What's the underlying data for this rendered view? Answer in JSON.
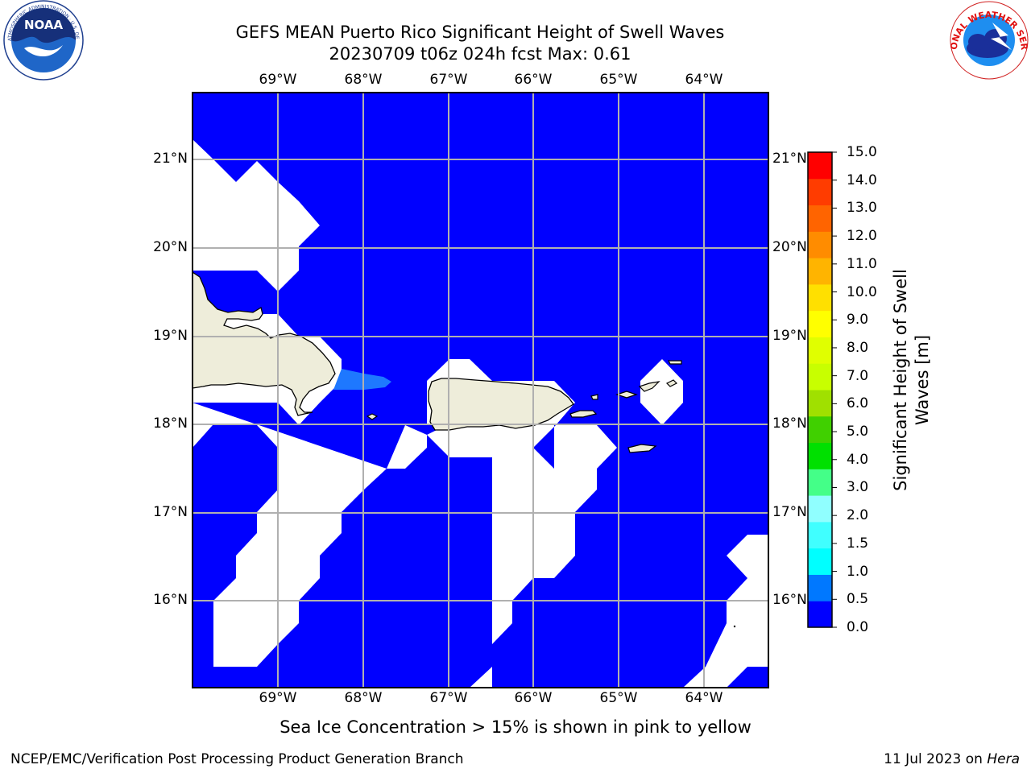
{
  "title_line1": "GEFS MEAN Puerto Rico Significant Height of Swell Waves",
  "title_line2": "20230709 t06z 024h fcst   Max: 0.61",
  "logo_left": {
    "icon": "noaa-logo-icon",
    "text": "NOAA",
    "ring_text": "NATIONAL OCEANIC AND ATMOSPHERIC ADMINISTRATION · U.S. DEPARTMENT OF COMMERCE"
  },
  "logo_right": {
    "icon": "national-weather-service-logo-icon",
    "ring_text": "NATIONAL WEATHER SERVICE"
  },
  "map": {
    "lon_labels": [
      "69°W",
      "68°W",
      "67°W",
      "66°W",
      "65°W",
      "64°W"
    ],
    "lat_labels": [
      "21°N",
      "20°N",
      "19°N",
      "18°N",
      "17°N",
      "16°N"
    ],
    "ocean_color": "#0000ff",
    "land_color": "#eeedda",
    "swell_highlight_color": "#1e78ff",
    "grid": true
  },
  "colorbar": {
    "label": "Significant Height of Swell Waves [m]",
    "ticks": [
      "15.0",
      "14.0",
      "13.0",
      "12.0",
      "11.0",
      "10.0",
      "9.0",
      "8.0",
      "7.0",
      "6.0",
      "5.0",
      "4.0",
      "3.0",
      "2.0",
      "1.5",
      "1.0",
      "0.5",
      "0.0"
    ],
    "colors_bottom_to_top": [
      "#0000ff",
      "#0078ff",
      "#00ffff",
      "#40ffff",
      "#90ffff",
      "#44ff88",
      "#00e000",
      "#40d000",
      "#a0e000",
      "#c8ff00",
      "#e0ff00",
      "#ffff00",
      "#ffe000",
      "#ffb400",
      "#ff8c00",
      "#ff6400",
      "#ff3c00",
      "#ff0000"
    ]
  },
  "sea_ice_note": "Sea Ice Concentration > 15% is shown in pink to yellow",
  "footer_left": "NCEP/EMC/Verification Post Processing Product Generation Branch",
  "footer_right_date": "11 Jul 2023 on ",
  "footer_right_host": "Hera"
}
